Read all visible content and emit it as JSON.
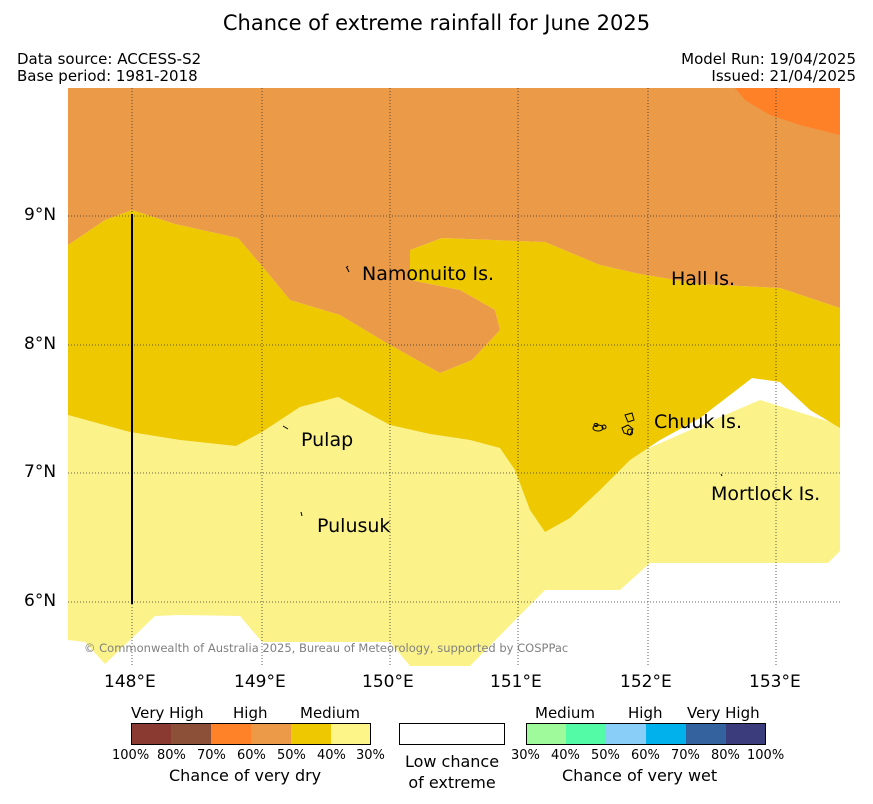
{
  "title": "Chance of extreme rainfall for June 2025",
  "header": {
    "source": "Data source: ACCESS-S2",
    "base_period": "Base period: 1981-2018",
    "model_run": "Model Run: 19/04/2025",
    "issued": "Issued: 21/04/2025"
  },
  "map": {
    "lat_labels": [
      "9°N",
      "8°N",
      "7°N",
      "6°N"
    ],
    "lon_labels": [
      "148°E",
      "149°E",
      "150°E",
      "151°E",
      "152°E",
      "153°E"
    ],
    "places": {
      "namonuito": "Namonuito Is.",
      "hall": "Hall Is.",
      "chuuk": "Chuuk Is.",
      "pulap": "Pulap",
      "mortlock": "Mortlock Is.",
      "pulusuk": "Pulusuk"
    },
    "copyright": "© Commonwealth of Australia 2025, Bureau of Meteorology, supported by COSPPac",
    "fill_colors": {
      "medium_dry_light": "#fbf38a",
      "medium_dry": "#eec800",
      "high_dry": "#eb9a48",
      "high_dry_strong": "#fe8027"
    }
  },
  "legend": {
    "dry": {
      "headings": [
        "Very High",
        "High",
        "Medium"
      ],
      "percents": [
        "100%",
        "80%",
        "70%",
        "60%",
        "50%",
        "40%",
        "30%"
      ],
      "colors": [
        "#8b3a32",
        "#8c5039",
        "#ff8128",
        "#ec9a48",
        "#eec800",
        "#fdf588"
      ],
      "caption": "Chance of very dry"
    },
    "low": {
      "line1": "Low chance",
      "line2": "of extreme"
    },
    "wet": {
      "headings": [
        "Medium",
        "High",
        "Very High"
      ],
      "percents": [
        "30%",
        "40%",
        "50%",
        "60%",
        "70%",
        "80%",
        "100%"
      ],
      "colors": [
        "#9efa9b",
        "#53fba6",
        "#88cef9",
        "#00b1ec",
        "#34629f",
        "#3b3c7c"
      ],
      "caption": "Chance of very wet"
    }
  }
}
